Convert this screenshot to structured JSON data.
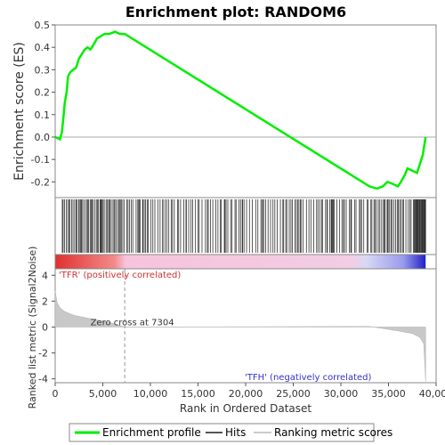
{
  "chart_data": {
    "type": "line",
    "title": "Enrichment plot: RANDOM6",
    "es_panel": {
      "ylabel": "Enrichment score (ES)",
      "ylim": [
        -0.27,
        0.5
      ],
      "yticks": [
        "0.5",
        "0.4",
        "0.3",
        "0.2",
        "0.1",
        "0.0",
        "-0.1",
        "-0.2"
      ],
      "ytick_values": [
        0.5,
        0.4,
        0.3,
        0.2,
        0.1,
        0.0,
        -0.1,
        -0.2
      ],
      "points": [
        [
          0,
          0
        ],
        [
          500,
          -0.01
        ],
        [
          700,
          0.02
        ],
        [
          850,
          0.08
        ],
        [
          1000,
          0.15
        ],
        [
          1200,
          0.2
        ],
        [
          1350,
          0.27
        ],
        [
          1600,
          0.29
        ],
        [
          1900,
          0.3
        ],
        [
          2200,
          0.31
        ],
        [
          2500,
          0.35
        ],
        [
          2800,
          0.37
        ],
        [
          3100,
          0.39
        ],
        [
          3400,
          0.4
        ],
        [
          3700,
          0.39
        ],
        [
          4000,
          0.41
        ],
        [
          4400,
          0.44
        ],
        [
          4800,
          0.45
        ],
        [
          5200,
          0.46
        ],
        [
          5700,
          0.46
        ],
        [
          6300,
          0.47
        ],
        [
          6800,
          0.46
        ],
        [
          7300,
          0.46
        ],
        [
          33000,
          -0.22
        ],
        [
          33800,
          -0.23
        ],
        [
          34400,
          -0.22
        ],
        [
          34900,
          -0.2
        ],
        [
          35500,
          -0.21
        ],
        [
          36000,
          -0.22
        ],
        [
          36300,
          -0.2
        ],
        [
          36700,
          -0.17
        ],
        [
          37000,
          -0.14
        ],
        [
          37500,
          -0.15
        ],
        [
          38000,
          -0.16
        ],
        [
          38300,
          -0.12
        ],
        [
          38600,
          -0.08
        ],
        [
          38900,
          0.0
        ]
      ],
      "series_color": "#00ee00"
    },
    "metric_panel": {
      "ylabel": "Ranked list metric (Signal2Noise)",
      "ylim": [
        -4.3,
        4.5
      ],
      "yticks": [
        "4",
        "2",
        "0",
        "-2",
        "-4"
      ],
      "ytick_values": [
        4,
        2,
        0,
        -2,
        -4
      ],
      "zero_cross_label": "Zero cross at 7304",
      "zero_cross": 7304,
      "pos_label": "'TFR' (positively correlated)",
      "neg_label": "'TFH' (negatively correlated)",
      "metric_profile": [
        [
          0,
          2.8
        ],
        [
          200,
          1.9
        ],
        [
          500,
          1.5
        ],
        [
          1000,
          1.2
        ],
        [
          2000,
          0.9
        ],
        [
          3000,
          0.75
        ],
        [
          4000,
          0.6
        ],
        [
          5000,
          0.45
        ],
        [
          6000,
          0.3
        ],
        [
          7304,
          0.0
        ],
        [
          33000,
          0.05
        ],
        [
          36000,
          -0.3
        ],
        [
          37500,
          -0.5
        ],
        [
          38300,
          -0.8
        ],
        [
          38700,
          -1.3
        ],
        [
          38900,
          -4.2
        ]
      ]
    },
    "xaxis": {
      "xlabel": "Rank in Ordered Dataset",
      "xlim": [
        0,
        40000
      ],
      "xticks": [
        "0",
        "5,000",
        "10,000",
        "15,000",
        "20,000",
        "25,000",
        "30,000",
        "35,000",
        "40,000"
      ],
      "xtick_values": [
        0,
        5000,
        10000,
        15000,
        20000,
        25000,
        30000,
        35000,
        40000
      ]
    },
    "dataset_size": 38900,
    "legend": {
      "placement": "bottom",
      "items": [
        {
          "label": "Enrichment profile",
          "color": "#00ee00"
        },
        {
          "label": "Hits",
          "color": "#555555"
        },
        {
          "label": "Ranking metric scores",
          "color": "#cccccc"
        }
      ]
    }
  }
}
